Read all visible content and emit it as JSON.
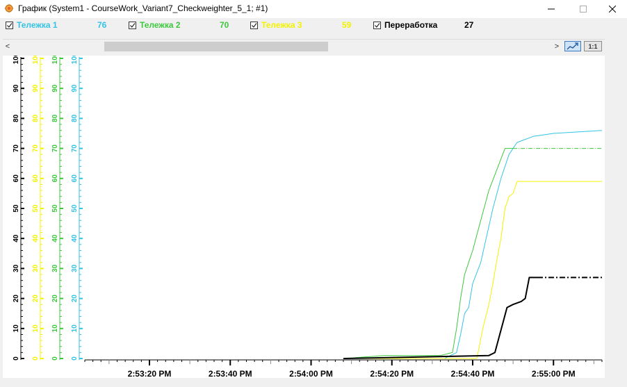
{
  "window": {
    "title": "График (System1 - CourseWork_Variant7_Checkweighter_5_1; #1)",
    "minimize_icon": "minimize-icon",
    "maximize_icon": "maximize-icon",
    "close_icon": "close-icon"
  },
  "legend": [
    {
      "label": "Тележка 1",
      "value": "76",
      "color": "#33c3e6",
      "checked": true
    },
    {
      "label": "Тележка 2",
      "value": "70",
      "color": "#3cc83c",
      "checked": true
    },
    {
      "label": "Тележка 3",
      "value": "59",
      "color": "#f3f300",
      "checked": true
    },
    {
      "label": "Переработка",
      "value": "27",
      "color": "#000000",
      "checked": true
    }
  ],
  "toolbar": {
    "scroll_left": "<",
    "scroll_right": ">",
    "autoscale_icon": "autoscale-icon",
    "zoom_label": "1:1"
  },
  "chart_data": {
    "type": "line",
    "x_ticks": [
      "2:53:20 PM",
      "2:53:40 PM",
      "2:54:00 PM",
      "2:54:20 PM",
      "2:54:40 PM",
      "2:55:00 PM"
    ],
    "x_tick_seconds": [
      200,
      220,
      240,
      260,
      280,
      300
    ],
    "xlim": [
      184,
      312
    ],
    "ylim": [
      0,
      100
    ],
    "y_ticks": [
      0,
      10,
      20,
      30,
      40,
      50,
      60,
      70,
      80,
      90,
      100
    ],
    "axes": [
      {
        "series": "Переработка",
        "color": "#000000"
      },
      {
        "series": "Тележка 3",
        "color": "#f3f300"
      },
      {
        "series": "Тележка 2",
        "color": "#3cc83c"
      },
      {
        "series": "Тележка 1",
        "color": "#33c3e6"
      }
    ],
    "series": [
      {
        "name": "Тележка 1",
        "color": "#33c3e6",
        "width": 1,
        "points": [
          [
            248,
            0
          ],
          [
            273,
            0
          ],
          [
            276,
            2
          ],
          [
            277,
            8
          ],
          [
            278,
            15
          ],
          [
            279,
            17
          ],
          [
            280,
            25
          ],
          [
            282,
            32
          ],
          [
            283,
            38
          ],
          [
            285,
            50
          ],
          [
            287,
            60
          ],
          [
            289,
            68
          ],
          [
            291,
            72
          ],
          [
            293,
            73
          ],
          [
            295,
            74
          ],
          [
            300,
            75
          ],
          [
            312,
            76
          ]
        ]
      },
      {
        "name": "Тележка 2",
        "color": "#3cc83c",
        "width": 1,
        "points": [
          [
            248,
            0
          ],
          [
            258,
            1
          ],
          [
            272,
            1
          ],
          [
            275,
            2
          ],
          [
            276,
            10
          ],
          [
            277,
            20
          ],
          [
            278,
            28
          ],
          [
            279,
            32
          ],
          [
            280,
            36
          ],
          [
            282,
            46
          ],
          [
            284,
            56
          ],
          [
            286,
            63
          ],
          [
            288,
            70
          ],
          [
            290,
            70
          ]
        ],
        "dash_to": 312
      },
      {
        "name": "Тележка 3",
        "color": "#f3f300",
        "width": 1,
        "points": [
          [
            248,
            0
          ],
          [
            281,
            0
          ],
          [
            281.5,
            3
          ],
          [
            282.5,
            10
          ],
          [
            284,
            18
          ],
          [
            285,
            25
          ],
          [
            286,
            33
          ],
          [
            287,
            40
          ],
          [
            288,
            50
          ],
          [
            289,
            54
          ],
          [
            290,
            55
          ],
          [
            291,
            59
          ],
          [
            295,
            59
          ],
          [
            312,
            59
          ]
        ]
      },
      {
        "name": "Переработка",
        "color": "#000000",
        "width": 2,
        "points": [
          [
            248,
            0
          ],
          [
            284,
            1
          ],
          [
            285.5,
            2
          ],
          [
            286.5,
            7
          ],
          [
            287.5,
            12
          ],
          [
            288.5,
            17
          ],
          [
            290,
            18
          ],
          [
            292,
            19
          ],
          [
            293,
            20
          ],
          [
            294,
            27
          ],
          [
            296,
            27
          ]
        ],
        "dash_to": 312
      }
    ]
  }
}
